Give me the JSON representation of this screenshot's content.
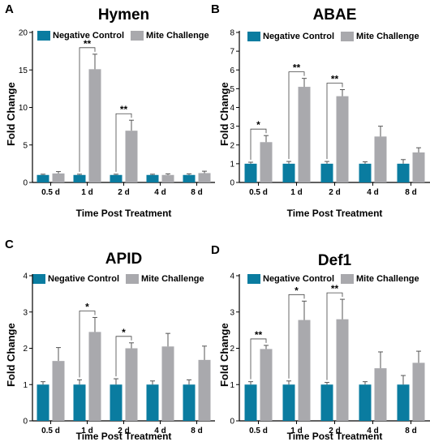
{
  "colors": {
    "negative": "#0a7ca0",
    "mite": "#a9a9ad"
  },
  "chart_data": [
    {
      "panel": "A",
      "title": "Hymen",
      "type": "bar",
      "xlabel": "Time Post Treatment",
      "ylabel": "Fold Change",
      "ylim": [
        0,
        20
      ],
      "yticks": [
        0,
        5,
        10,
        15,
        20
      ],
      "categories": [
        "0.5 d",
        "1 d",
        "2 d",
        "4 d",
        "8 d"
      ],
      "series": [
        {
          "name": "Negative Control",
          "values": [
            1.0,
            1.0,
            1.0,
            1.0,
            1.0
          ],
          "errors": [
            0.1,
            0.1,
            0.1,
            0.1,
            0.15
          ]
        },
        {
          "name": "Mite Challenge",
          "values": [
            1.2,
            15.1,
            6.9,
            1.0,
            1.25
          ],
          "errors": [
            0.25,
            2.0,
            1.4,
            0.15,
            0.25
          ]
        }
      ],
      "significance": [
        {
          "category": "1 d",
          "label": "**"
        },
        {
          "category": "2 d",
          "label": "**"
        }
      ]
    },
    {
      "panel": "B",
      "title": "ABAE",
      "type": "bar",
      "xlabel": "Time Post Treatment",
      "ylabel": "Fold Change",
      "ylim": [
        0,
        8
      ],
      "yticks": [
        0,
        1,
        2,
        3,
        4,
        5,
        6,
        7,
        8
      ],
      "categories": [
        "0.5 d",
        "1 d",
        "2 d",
        "4 d",
        "8 d"
      ],
      "series": [
        {
          "name": "Negative Control",
          "values": [
            1.0,
            1.0,
            1.0,
            1.0,
            1.0
          ],
          "errors": [
            0.08,
            0.12,
            0.12,
            0.1,
            0.22
          ]
        },
        {
          "name": "Mite Challenge",
          "values": [
            2.15,
            5.1,
            4.6,
            2.45,
            1.6
          ],
          "errors": [
            0.35,
            0.45,
            0.35,
            0.55,
            0.25
          ]
        }
      ],
      "significance": [
        {
          "category": "0.5 d",
          "label": "*"
        },
        {
          "category": "1 d",
          "label": "**"
        },
        {
          "category": "2 d",
          "label": "**"
        }
      ]
    },
    {
      "panel": "C",
      "title": "APID",
      "type": "bar",
      "xlabel": "Time Post Treatment",
      "ylabel": "Fold Change",
      "ylim": [
        0,
        4
      ],
      "yticks": [
        0,
        1,
        2,
        3,
        4
      ],
      "categories": [
        "0.5 d",
        "1 d",
        "2 d",
        "4 d",
        "8 d"
      ],
      "series": [
        {
          "name": "Negative Control",
          "values": [
            1.0,
            1.0,
            1.0,
            1.0,
            1.0
          ],
          "errors": [
            0.08,
            0.13,
            0.16,
            0.1,
            0.13
          ]
        },
        {
          "name": "Mite Challenge",
          "values": [
            1.65,
            2.45,
            2.0,
            2.05,
            1.68
          ],
          "errors": [
            0.37,
            0.4,
            0.15,
            0.36,
            0.38
          ]
        }
      ],
      "significance": [
        {
          "category": "1 d",
          "label": "*"
        },
        {
          "category": "2 d",
          "label": "*"
        }
      ]
    },
    {
      "panel": "D",
      "title": "Def1",
      "type": "bar",
      "xlabel": "Time Post Treatment",
      "ylabel": "Fold Change",
      "ylim": [
        0,
        4
      ],
      "yticks": [
        0,
        1,
        2,
        3,
        4
      ],
      "categories": [
        "0.5 d",
        "1 d",
        "2 d",
        "4 d",
        "8 d"
      ],
      "series": [
        {
          "name": "Negative Control",
          "values": [
            1.0,
            1.0,
            1.0,
            1.0,
            1.0
          ],
          "errors": [
            0.08,
            0.1,
            0.06,
            0.08,
            0.25
          ]
        },
        {
          "name": "Mite Challenge",
          "values": [
            1.98,
            2.78,
            2.8,
            1.45,
            1.6
          ],
          "errors": [
            0.1,
            0.52,
            0.55,
            0.45,
            0.32
          ]
        }
      ],
      "significance": [
        {
          "category": "0.5 d",
          "label": "**"
        },
        {
          "category": "1 d",
          "label": "*"
        },
        {
          "category": "2 d",
          "label": "**"
        }
      ]
    }
  ]
}
